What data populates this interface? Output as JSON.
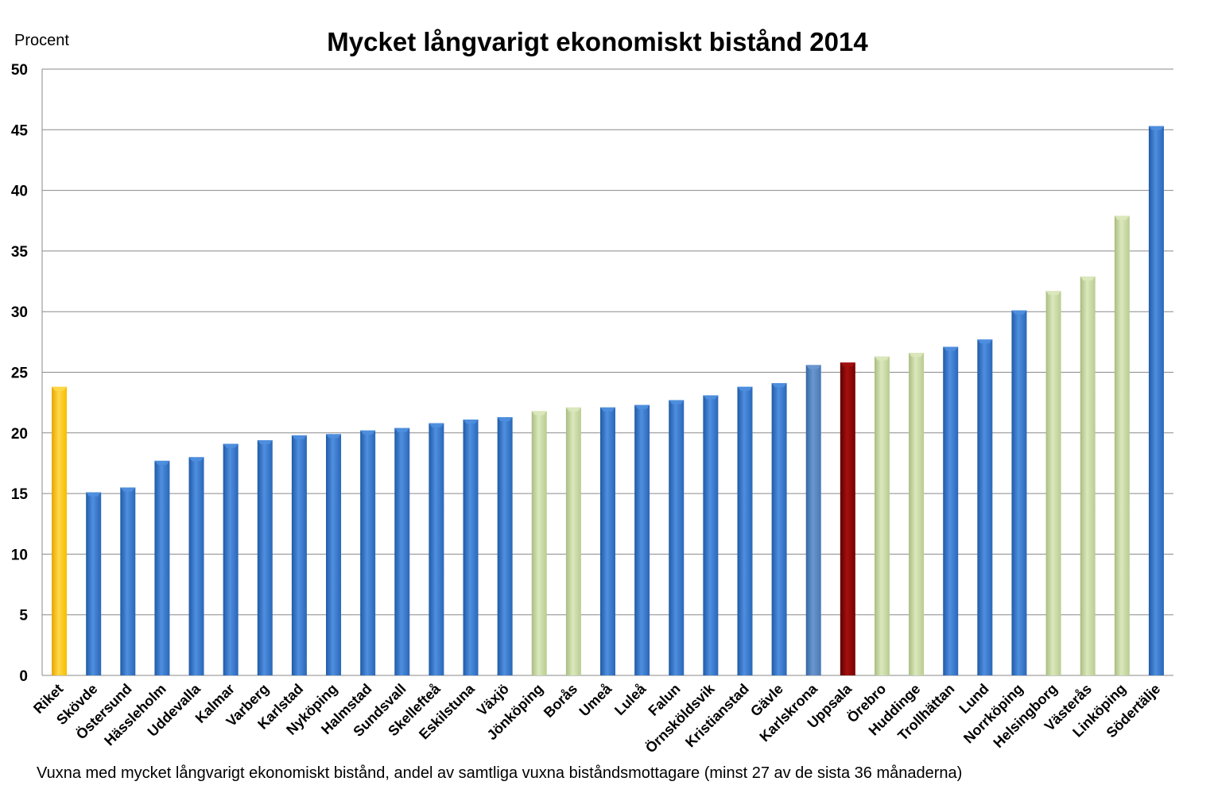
{
  "chart_data": {
    "type": "bar",
    "title": "Mycket långvarigt ekonomiskt bistånd 2014",
    "ylabel": "Procent",
    "xlabel": "",
    "footnote": "Vuxna med mycket långvarigt ekonomiskt bistånd, andel av samtliga vuxna biståndsmottagare (minst 27 av de sista 36 månaderna)",
    "ylim": [
      0,
      50
    ],
    "yticks": [
      0,
      5,
      10,
      15,
      20,
      25,
      30,
      35,
      40,
      45,
      50
    ],
    "grid": true,
    "categories": [
      "Riket",
      "Skövde",
      "Östersund",
      "Hässleholm",
      "Uddevalla",
      "Kalmar",
      "Varberg",
      "Karlstad",
      "Nyköping",
      "Halmstad",
      "Sundsvall",
      "Skellefteå",
      "Eskilstuna",
      "Växjö",
      "Jönköping",
      "Borås",
      "Umeå",
      "Luleå",
      "Falun",
      "Örnsköldsvik",
      "Kristianstad",
      "Gävle",
      "Karlskrona",
      "Uppsala",
      "Örebro",
      "Huddinge",
      "Trollhättan",
      "Lund",
      "Norrköping",
      "Helsingborg",
      "Västerås",
      "Linköping",
      "Södertälje"
    ],
    "values": [
      23.8,
      15.1,
      15.5,
      17.7,
      18.0,
      19.1,
      19.4,
      19.8,
      19.9,
      20.2,
      20.4,
      20.8,
      21.1,
      21.3,
      21.8,
      22.1,
      22.1,
      22.3,
      22.7,
      23.1,
      23.8,
      24.1,
      25.6,
      25.8,
      26.3,
      26.6,
      27.1,
      27.7,
      30.1,
      31.7,
      32.9,
      37.9,
      45.3
    ],
    "bar_colors": [
      "gold",
      "blue",
      "blue",
      "blue",
      "blue",
      "blue",
      "blue",
      "blue",
      "blue",
      "blue",
      "blue",
      "blue",
      "blue",
      "blue",
      "green",
      "green",
      "blue",
      "blue",
      "blue",
      "blue",
      "blue",
      "blue",
      "steel",
      "red",
      "green",
      "green",
      "blue",
      "blue",
      "blue",
      "green",
      "green",
      "green",
      "blue"
    ],
    "palette": {
      "blue": [
        "#1f5aa6",
        "#4f8fdf",
        "#2a66b8"
      ],
      "green": [
        "#a9bd80",
        "#dbe8bd",
        "#b9cc90"
      ],
      "gold": [
        "#e6a400",
        "#ffd84a",
        "#f5bd00"
      ],
      "red": [
        "#5e0000",
        "#a31010",
        "#7a0000"
      ],
      "steel": [
        "#3566a3",
        "#6b97cf",
        "#4878b5"
      ]
    },
    "colors": {
      "grid": "#8a8a8a",
      "axis": "#8a8a8a"
    }
  }
}
